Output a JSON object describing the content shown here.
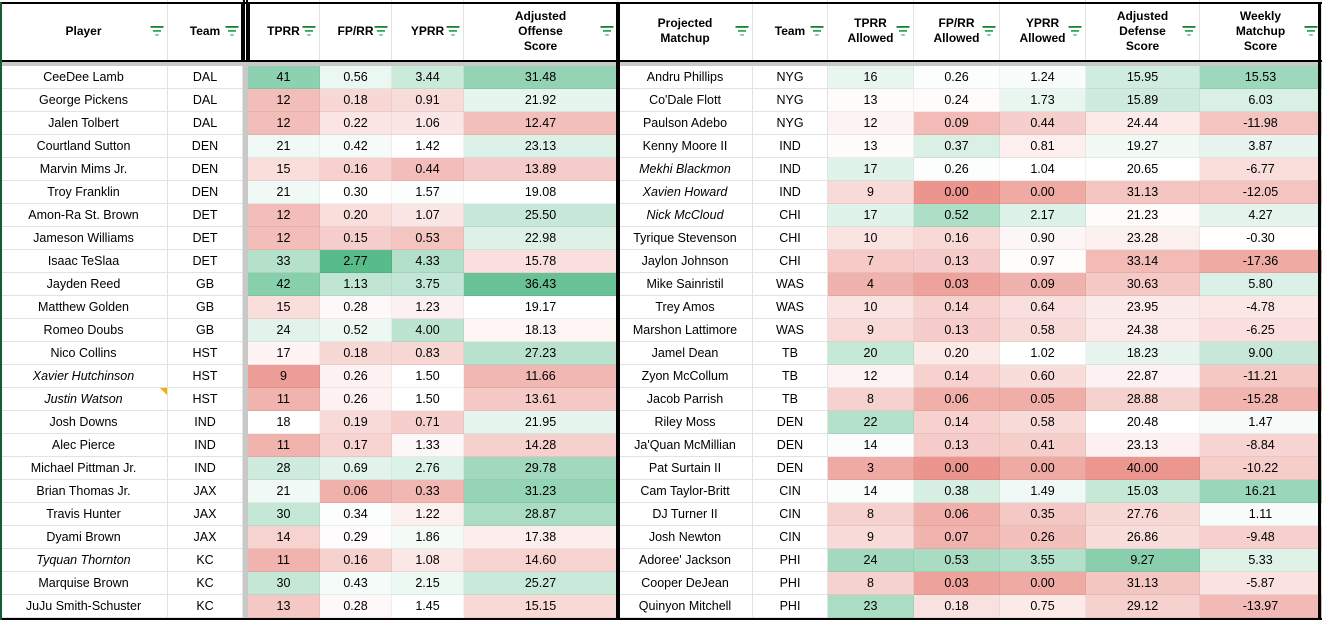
{
  "formatting": {
    "scale_red": "#e67c73",
    "scale_white": "#ffffff",
    "scale_green": "#57bb8a",
    "filter_icon_greens": [
      "#188038",
      "#34a853",
      "#81c995"
    ],
    "table_border_color": "#000000",
    "left_outer_border_color": "#185c37",
    "note_marker_color": "#f9ab00",
    "gridline_color": "#e2e2e2",
    "frozen_divider_color": "#c9c9c9",
    "column_scales": {
      "tprr": {
        "min": 6,
        "mid": 18,
        "max": 52
      },
      "fprr": {
        "min": -0.1,
        "mid": 0.3,
        "max": 2.5
      },
      "yprr": {
        "min": -0.59,
        "mid": 1.45,
        "max": 7.8
      },
      "off_score": {
        "min": 5.6,
        "mid": 19.1,
        "max": 38.4
      },
      "tprr_allowed": {
        "min": -2.65,
        "mid": 13.5,
        "max": 32.6
      },
      "fprr_allowed": {
        "min": -0.06,
        "mid": 0.25,
        "max": 0.8
      },
      "yprr_allowed": {
        "min": -0.54,
        "mid": 1.0,
        "max": 6.67
      },
      "def_score": {
        "min": 4.46,
        "mid": 20.5,
        "max": 44.9,
        "invert": true
      },
      "weekly_score": {
        "min": -26.7,
        "mid": 0,
        "max": 27
      }
    }
  },
  "left_table": {
    "columns": [
      {
        "label": "Player",
        "key": "player"
      },
      {
        "label": "Team",
        "key": "team"
      },
      {
        "label": "TPRR",
        "key": "tprr",
        "scale": "tprr"
      },
      {
        "label": "FP/RR",
        "key": "fprr",
        "scale": "fprr"
      },
      {
        "label": "YPRR",
        "key": "yprr",
        "scale": "yprr"
      },
      {
        "label": "Adjusted Offense Score",
        "key": "off_score",
        "scale": "off_score"
      }
    ],
    "rows": [
      {
        "player": "CeeDee Lamb",
        "italic": false,
        "note": false,
        "team": "DAL",
        "tprr": "41",
        "fprr": "0.56",
        "yprr": "3.44",
        "off_score": "31.48"
      },
      {
        "player": "George Pickens",
        "italic": false,
        "note": false,
        "team": "DAL",
        "tprr": "12",
        "fprr": "0.18",
        "yprr": "0.91",
        "off_score": "21.92"
      },
      {
        "player": "Jalen Tolbert",
        "italic": false,
        "note": false,
        "team": "DAL",
        "tprr": "12",
        "fprr": "0.22",
        "yprr": "1.06",
        "off_score": "12.47"
      },
      {
        "player": "Courtland Sutton",
        "italic": false,
        "note": false,
        "team": "DEN",
        "tprr": "21",
        "fprr": "0.42",
        "yprr": "1.42",
        "off_score": "23.13"
      },
      {
        "player": "Marvin Mims Jr.",
        "italic": false,
        "note": false,
        "team": "DEN",
        "tprr": "15",
        "fprr": "0.16",
        "yprr": "0.44",
        "off_score": "13.89"
      },
      {
        "player": "Troy Franklin",
        "italic": false,
        "note": false,
        "team": "DEN",
        "tprr": "21",
        "fprr": "0.30",
        "yprr": "1.57",
        "off_score": "19.08"
      },
      {
        "player": "Amon-Ra St. Brown",
        "italic": false,
        "note": false,
        "team": "DET",
        "tprr": "12",
        "fprr": "0.20",
        "yprr": "1.07",
        "off_score": "25.50"
      },
      {
        "player": "Jameson Williams",
        "italic": false,
        "note": false,
        "team": "DET",
        "tprr": "12",
        "fprr": "0.15",
        "yprr": "0.53",
        "off_score": "22.98"
      },
      {
        "player": "Isaac TeSlaa",
        "italic": false,
        "note": false,
        "team": "DET",
        "tprr": "33",
        "fprr": "2.77",
        "yprr": "4.33",
        "off_score": "15.78"
      },
      {
        "player": "Jayden Reed",
        "italic": false,
        "note": false,
        "team": "GB",
        "tprr": "42",
        "fprr": "1.13",
        "yprr": "3.75",
        "off_score": "36.43"
      },
      {
        "player": "Matthew Golden",
        "italic": false,
        "note": false,
        "team": "GB",
        "tprr": "15",
        "fprr": "0.28",
        "yprr": "1.23",
        "off_score": "19.17"
      },
      {
        "player": "Romeo Doubs",
        "italic": false,
        "note": false,
        "team": "GB",
        "tprr": "24",
        "fprr": "0.52",
        "yprr": "4.00",
        "off_score": "18.13"
      },
      {
        "player": "Nico Collins",
        "italic": false,
        "note": false,
        "team": "HST",
        "tprr": "17",
        "fprr": "0.18",
        "yprr": "0.83",
        "off_score": "27.23"
      },
      {
        "player": "Xavier Hutchinson",
        "italic": true,
        "note": false,
        "team": "HST",
        "tprr": "9",
        "fprr": "0.26",
        "yprr": "1.50",
        "off_score": "11.66"
      },
      {
        "player": "Justin Watson",
        "italic": true,
        "note": true,
        "team": "HST",
        "tprr": "11",
        "fprr": "0.26",
        "yprr": "1.50",
        "off_score": "13.61"
      },
      {
        "player": "Josh Downs",
        "italic": false,
        "note": false,
        "team": "IND",
        "tprr": "18",
        "fprr": "0.19",
        "yprr": "0.71",
        "off_score": "21.95"
      },
      {
        "player": "Alec Pierce",
        "italic": false,
        "note": false,
        "team": "IND",
        "tprr": "11",
        "fprr": "0.17",
        "yprr": "1.33",
        "off_score": "14.28"
      },
      {
        "player": "Michael Pittman Jr.",
        "italic": false,
        "note": false,
        "team": "IND",
        "tprr": "28",
        "fprr": "0.69",
        "yprr": "2.76",
        "off_score": "29.78"
      },
      {
        "player": "Brian Thomas Jr.",
        "italic": false,
        "note": false,
        "team": "JAX",
        "tprr": "21",
        "fprr": "0.06",
        "yprr": "0.33",
        "off_score": "31.23"
      },
      {
        "player": "Travis Hunter",
        "italic": false,
        "note": false,
        "team": "JAX",
        "tprr": "30",
        "fprr": "0.34",
        "yprr": "1.22",
        "off_score": "28.87"
      },
      {
        "player": "Dyami Brown",
        "italic": false,
        "note": false,
        "team": "JAX",
        "tprr": "14",
        "fprr": "0.29",
        "yprr": "1.86",
        "off_score": "17.38"
      },
      {
        "player": "Tyquan Thornton",
        "italic": true,
        "note": false,
        "team": "KC",
        "tprr": "11",
        "fprr": "0.16",
        "yprr": "1.08",
        "off_score": "14.60"
      },
      {
        "player": "Marquise Brown",
        "italic": false,
        "note": false,
        "team": "KC",
        "tprr": "30",
        "fprr": "0.43",
        "yprr": "2.15",
        "off_score": "25.27"
      },
      {
        "player": "JuJu Smith-Schuster",
        "italic": false,
        "note": false,
        "team": "KC",
        "tprr": "13",
        "fprr": "0.28",
        "yprr": "1.45",
        "off_score": "15.15"
      }
    ]
  },
  "right_table": {
    "columns": [
      {
        "label": "Projected Matchup",
        "key": "player",
        "labelclass": "proj"
      },
      {
        "label": "Team",
        "key": "team"
      },
      {
        "label": "TPRR Allowed",
        "key": "tprr_allowed",
        "scale": "tprr_allowed"
      },
      {
        "label": "FP/RR Allowed",
        "key": "fprr_allowed",
        "scale": "fprr_allowed"
      },
      {
        "label": "YPRR Allowed",
        "key": "yprr_allowed",
        "scale": "yprr_allowed"
      },
      {
        "label": "Adjusted Defense Score",
        "key": "def_score",
        "scale": "def_score"
      },
      {
        "label": "Weekly Matchup Score",
        "key": "weekly_score",
        "scale": "weekly_score"
      }
    ],
    "rows": [
      {
        "player": "Andru Phillips",
        "italic": false,
        "note": false,
        "team": "NYG",
        "tprr_allowed": "16",
        "fprr_allowed": "0.26",
        "yprr_allowed": "1.24",
        "def_score": "15.95",
        "weekly_score": "15.53"
      },
      {
        "player": "Co'Dale Flott",
        "italic": false,
        "note": false,
        "team": "NYG",
        "tprr_allowed": "13",
        "fprr_allowed": "0.24",
        "yprr_allowed": "1.73",
        "def_score": "15.89",
        "weekly_score": "6.03"
      },
      {
        "player": "Paulson Adebo",
        "italic": false,
        "note": false,
        "team": "NYG",
        "tprr_allowed": "12",
        "fprr_allowed": "0.09",
        "yprr_allowed": "0.44",
        "def_score": "24.44",
        "weekly_score": "-11.98"
      },
      {
        "player": "Kenny Moore II",
        "italic": false,
        "note": false,
        "team": "IND",
        "tprr_allowed": "13",
        "fprr_allowed": "0.37",
        "yprr_allowed": "0.81",
        "def_score": "19.27",
        "weekly_score": "3.87"
      },
      {
        "player": "Mekhi Blackmon",
        "italic": true,
        "note": false,
        "team": "IND",
        "tprr_allowed": "17",
        "fprr_allowed": "0.26",
        "yprr_allowed": "1.04",
        "def_score": "20.65",
        "weekly_score": "-6.77"
      },
      {
        "player": "Xavien Howard",
        "italic": true,
        "note": false,
        "team": "IND",
        "tprr_allowed": "9",
        "fprr_allowed": "0.00",
        "yprr_allowed": "0.00",
        "def_score": "31.13",
        "weekly_score": "-12.05"
      },
      {
        "player": "Nick McCloud",
        "italic": true,
        "note": false,
        "team": "CHI",
        "tprr_allowed": "17",
        "fprr_allowed": "0.52",
        "yprr_allowed": "2.17",
        "def_score": "21.23",
        "weekly_score": "4.27"
      },
      {
        "player": "Tyrique Stevenson",
        "italic": false,
        "note": false,
        "team": "CHI",
        "tprr_allowed": "10",
        "fprr_allowed": "0.16",
        "yprr_allowed": "0.90",
        "def_score": "23.28",
        "weekly_score": "-0.30"
      },
      {
        "player": "Jaylon Johnson",
        "italic": false,
        "note": false,
        "team": "CHI",
        "tprr_allowed": "7",
        "fprr_allowed": "0.13",
        "yprr_allowed": "0.97",
        "def_score": "33.14",
        "weekly_score": "-17.36"
      },
      {
        "player": "Mike Sainristil",
        "italic": false,
        "note": false,
        "team": "WAS",
        "tprr_allowed": "4",
        "fprr_allowed": "0.03",
        "yprr_allowed": "0.09",
        "def_score": "30.63",
        "weekly_score": "5.80"
      },
      {
        "player": "Trey Amos",
        "italic": false,
        "note": false,
        "team": "WAS",
        "tprr_allowed": "10",
        "fprr_allowed": "0.14",
        "yprr_allowed": "0.64",
        "def_score": "23.95",
        "weekly_score": "-4.78"
      },
      {
        "player": "Marshon Lattimore",
        "italic": false,
        "note": false,
        "team": "WAS",
        "tprr_allowed": "9",
        "fprr_allowed": "0.13",
        "yprr_allowed": "0.58",
        "def_score": "24.38",
        "weekly_score": "-6.25"
      },
      {
        "player": "Jamel Dean",
        "italic": false,
        "note": false,
        "team": "TB",
        "tprr_allowed": "20",
        "fprr_allowed": "0.20",
        "yprr_allowed": "1.02",
        "def_score": "18.23",
        "weekly_score": "9.00"
      },
      {
        "player": "Zyon McCollum",
        "italic": false,
        "note": false,
        "team": "TB",
        "tprr_allowed": "12",
        "fprr_allowed": "0.14",
        "yprr_allowed": "0.60",
        "def_score": "22.87",
        "weekly_score": "-11.21"
      },
      {
        "player": "Jacob Parrish",
        "italic": false,
        "note": false,
        "team": "TB",
        "tprr_allowed": "8",
        "fprr_allowed": "0.06",
        "yprr_allowed": "0.05",
        "def_score": "28.88",
        "weekly_score": "-15.28"
      },
      {
        "player": "Riley Moss",
        "italic": false,
        "note": false,
        "team": "DEN",
        "tprr_allowed": "22",
        "fprr_allowed": "0.14",
        "yprr_allowed": "0.58",
        "def_score": "20.48",
        "weekly_score": "1.47"
      },
      {
        "player": "Ja'Quan McMillian",
        "italic": false,
        "note": false,
        "team": "DEN",
        "tprr_allowed": "14",
        "fprr_allowed": "0.13",
        "yprr_allowed": "0.41",
        "def_score": "23.13",
        "weekly_score": "-8.84"
      },
      {
        "player": "Pat Surtain II",
        "italic": false,
        "note": false,
        "team": "DEN",
        "tprr_allowed": "3",
        "fprr_allowed": "0.00",
        "yprr_allowed": "0.00",
        "def_score": "40.00",
        "weekly_score": "-10.22"
      },
      {
        "player": "Cam Taylor-Britt",
        "italic": false,
        "note": false,
        "team": "CIN",
        "tprr_allowed": "14",
        "fprr_allowed": "0.38",
        "yprr_allowed": "1.49",
        "def_score": "15.03",
        "weekly_score": "16.21"
      },
      {
        "player": "DJ Turner II",
        "italic": false,
        "note": false,
        "team": "CIN",
        "tprr_allowed": "8",
        "fprr_allowed": "0.06",
        "yprr_allowed": "0.35",
        "def_score": "27.76",
        "weekly_score": "1.11"
      },
      {
        "player": "Josh Newton",
        "italic": false,
        "note": false,
        "team": "CIN",
        "tprr_allowed": "9",
        "fprr_allowed": "0.07",
        "yprr_allowed": "0.26",
        "def_score": "26.86",
        "weekly_score": "-9.48"
      },
      {
        "player": "Adoree' Jackson",
        "italic": false,
        "note": false,
        "team": "PHI",
        "tprr_allowed": "24",
        "fprr_allowed": "0.53",
        "yprr_allowed": "3.55",
        "def_score": "9.27",
        "weekly_score": "5.33"
      },
      {
        "player": "Cooper DeJean",
        "italic": false,
        "note": false,
        "team": "PHI",
        "tprr_allowed": "8",
        "fprr_allowed": "0.03",
        "yprr_allowed": "0.00",
        "def_score": "31.13",
        "weekly_score": "-5.87"
      },
      {
        "player": "Quinyon Mitchell",
        "italic": false,
        "note": false,
        "team": "PHI",
        "tprr_allowed": "23",
        "fprr_allowed": "0.18",
        "yprr_allowed": "0.75",
        "def_score": "29.12",
        "weekly_score": "-13.97"
      }
    ]
  }
}
